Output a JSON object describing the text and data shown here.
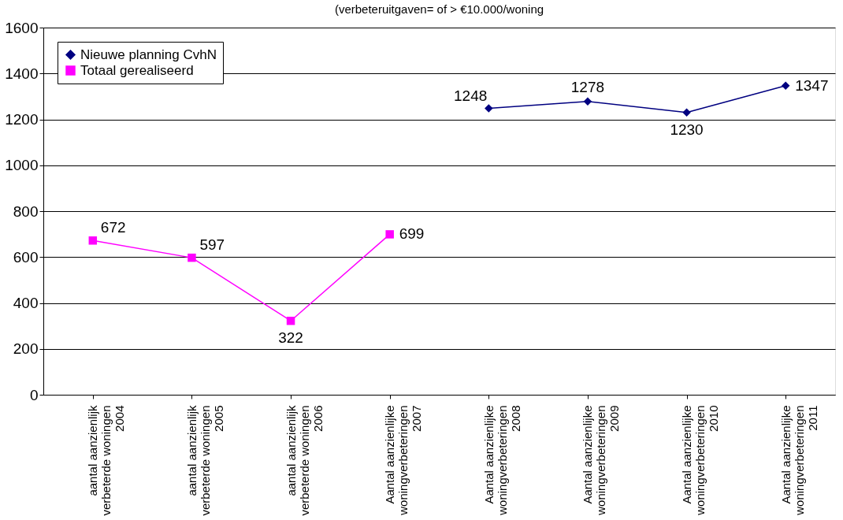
{
  "chart_data": {
    "type": "line",
    "title": "(verbeteruitgaven= of > €10.000/woning",
    "categories": [
      "aantal aanzienlijk\nverbeterde woningen\n2004",
      "aantal aanzienlijk\nverbeterde woningen\n2005",
      "aantal aanzienlijk\nverbeterde woningen\n2006",
      "Aantal aanzienlijke\nwoningverbeteringen\n2007",
      "Aantal aanzienlijke\nwoningverbeteringen\n2008",
      "Aantal aanzienlijke\nwoningverbeteringen\n2009",
      "Aantal aanzienlijke\nwoningverbeteringen\n2010",
      "Aantal aanzienlijke\nwoningverbeteringen\n2011"
    ],
    "series": [
      {
        "name": "Nieuwe planning CvhN",
        "color": "#000080",
        "marker": "diamond",
        "values": [
          null,
          null,
          null,
          null,
          1248,
          1278,
          1230,
          1347
        ]
      },
      {
        "name": "Totaal gerealiseerd",
        "color": "#ff00ff",
        "marker": "square",
        "values": [
          672,
          597,
          322,
          699,
          null,
          null,
          null,
          null
        ]
      }
    ],
    "ylim": [
      0,
      1600
    ],
    "yticks": [
      0,
      200,
      400,
      600,
      800,
      1000,
      1200,
      1400,
      1600
    ],
    "grid": "y",
    "legend": "top left",
    "data_labels": true
  }
}
